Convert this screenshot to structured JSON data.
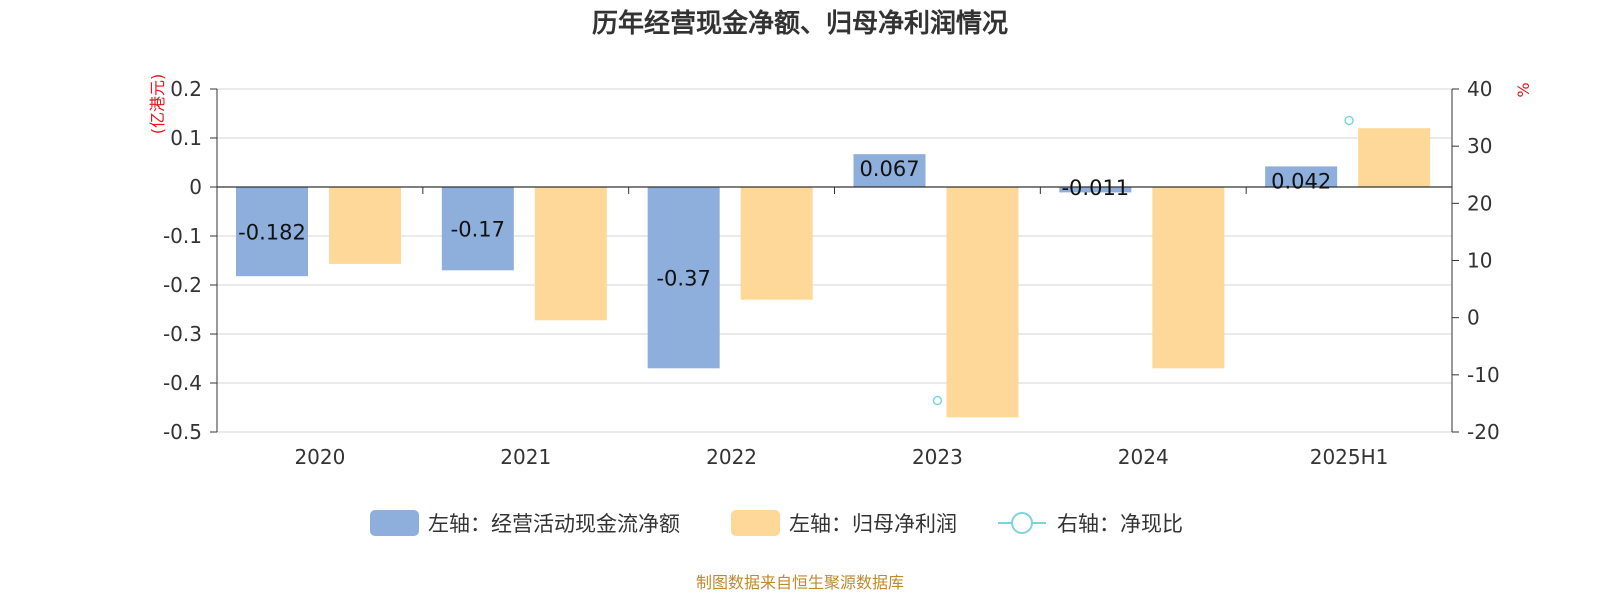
{
  "chart_data": {
    "type": "bar",
    "title": "历年经营现金净额、归母净利润情况",
    "left_axis_unit": "(亿港元)",
    "right_axis_unit": "%",
    "categories": [
      "2020",
      "2021",
      "2022",
      "2023",
      "2024",
      "2025H1"
    ],
    "left_ylim": [
      -0.5,
      0.2
    ],
    "left_ticks": [
      "0.2",
      "0.1",
      "0",
      "-0.1",
      "-0.2",
      "-0.3",
      "-0.4",
      "-0.5"
    ],
    "left_tick_values": [
      0.2,
      0.1,
      0,
      -0.1,
      -0.2,
      -0.3,
      -0.4,
      -0.5
    ],
    "right_ylim": [
      -20,
      40
    ],
    "right_ticks": [
      "40",
      "30",
      "20",
      "10",
      "0",
      "-10",
      "-20"
    ],
    "right_tick_values": [
      40,
      30,
      20,
      10,
      0,
      -10,
      -20
    ],
    "series": [
      {
        "name": "左轴：经营活动现金流净额",
        "axis": "left",
        "kind": "bar",
        "color": "#8eaedc",
        "values": [
          -0.182,
          -0.17,
          -0.37,
          0.067,
          -0.011,
          0.042
        ],
        "labels": [
          "-0.182",
          "-0.17",
          "-0.37",
          "0.067",
          "-0.011",
          "0.042"
        ]
      },
      {
        "name": "左轴：归母净利润",
        "axis": "left",
        "kind": "bar",
        "color": "#fdd898",
        "values": [
          -0.157,
          -0.272,
          -0.23,
          -0.47,
          -0.37,
          0.12
        ]
      },
      {
        "name": "右轴：净现比",
        "axis": "right",
        "kind": "point",
        "color": "#7dd3de",
        "values": [
          null,
          null,
          null,
          -14.5,
          null,
          34.5
        ]
      }
    ],
    "grid": true,
    "legend_position": "bottom"
  },
  "source_note": "制图数据来自恒生聚源数据库"
}
